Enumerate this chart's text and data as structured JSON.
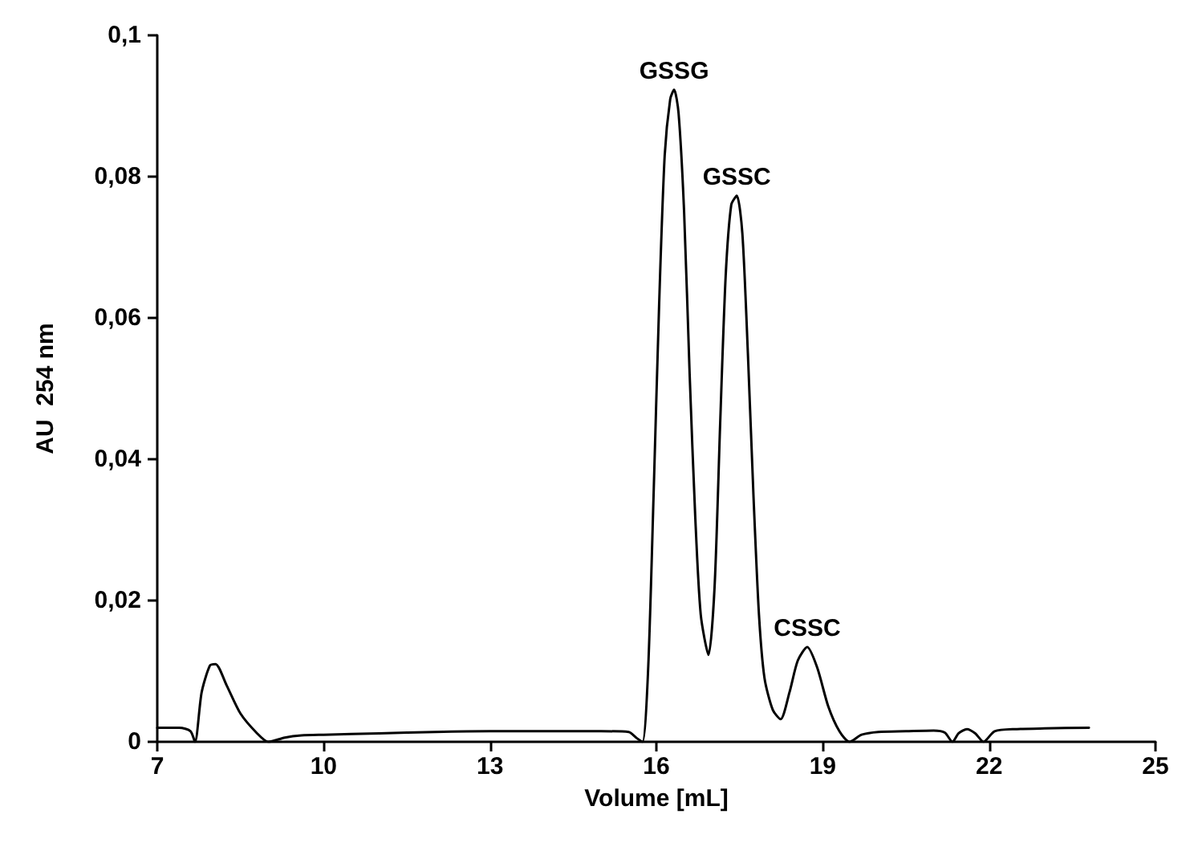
{
  "chart_data": {
    "type": "line",
    "xlabel": "Volume [mL]",
    "ylabel": "AU  254 nm",
    "xlim": [
      7,
      25
    ],
    "xticks": [
      7,
      10,
      13,
      16,
      19,
      22,
      25
    ],
    "ylim": [
      0,
      0.1
    ],
    "yticks": [
      {
        "value": 0,
        "label": "0"
      },
      {
        "value": 0.02,
        "label": "0,02"
      },
      {
        "value": 0.04,
        "label": "0,04"
      },
      {
        "value": 0.06,
        "label": "0,06"
      },
      {
        "value": 0.08,
        "label": "0,08"
      },
      {
        "value": 0.1,
        "label": "0,1"
      }
    ],
    "grid": false,
    "marker": "none",
    "line_style": "solid",
    "annotations": [
      {
        "text": "GSSG",
        "x": 16.32,
        "y": 0.0923
      },
      {
        "text": "GSSC",
        "x": 17.45,
        "y": 0.0773
      },
      {
        "text": "CSSC",
        "x": 18.72,
        "y": 0.0134
      }
    ],
    "series": [
      {
        "color": "#000000",
        "x": [
          7.0,
          7.4,
          7.6,
          7.68,
          7.8,
          7.95,
          8.05,
          8.25,
          8.5,
          8.8,
          9.0,
          9.3,
          9.6,
          10,
          11,
          12,
          13,
          14,
          15,
          15.5,
          15.65,
          15.75,
          15.85,
          15.95,
          16.05,
          16.15,
          16.25,
          16.32,
          16.4,
          16.5,
          16.6,
          16.7,
          16.8,
          16.94,
          17.05,
          17.15,
          17.25,
          17.35,
          17.45,
          17.55,
          17.65,
          17.75,
          17.85,
          17.95,
          18.1,
          18.24,
          18.4,
          18.55,
          18.72,
          18.9,
          19.1,
          19.3,
          19.48,
          19.7,
          20,
          20.5,
          21,
          21.2,
          21.34,
          21.45,
          21.6,
          21.75,
          21.9,
          22.1,
          22.5,
          23,
          23.8
        ],
        "values": [
          0.002,
          0.002,
          0.0015,
          0,
          0.007,
          0.0108,
          0.011,
          0.008,
          0.004,
          0.0012,
          0,
          0.0006,
          0.0009,
          0.001,
          0.0012,
          0.0014,
          0.0015,
          0.0015,
          0.0015,
          0.0014,
          0.0005,
          0,
          0.01,
          0.035,
          0.062,
          0.083,
          0.091,
          0.0923,
          0.089,
          0.075,
          0.052,
          0.032,
          0.018,
          0.0123,
          0.022,
          0.045,
          0.066,
          0.076,
          0.0773,
          0.072,
          0.055,
          0.035,
          0.018,
          0.009,
          0.0045,
          0.0032,
          0.007,
          0.0115,
          0.0134,
          0.0105,
          0.005,
          0.0015,
          0,
          0.001,
          0.0014,
          0.0015,
          0.0016,
          0.0013,
          0,
          0.0012,
          0.0018,
          0.0012,
          0,
          0.0015,
          0.0018,
          0.0019,
          0.002
        ]
      }
    ]
  }
}
